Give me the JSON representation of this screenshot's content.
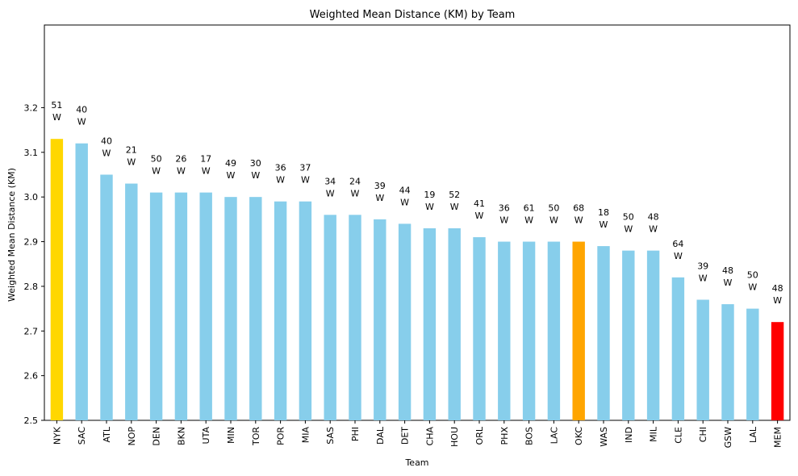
{
  "chart_data": {
    "type": "bar",
    "title": "Weighted Mean Distance (KM) by Team",
    "xlabel": "Team",
    "ylabel": "Weighted Mean Distance (KM)",
    "ylim": [
      2.5,
      3.385
    ],
    "yticks": [
      2.5,
      2.6,
      2.7,
      2.8,
      2.9,
      3.0,
      3.1,
      3.2
    ],
    "ytick_labels": [
      "2.5",
      "2.6",
      "2.7",
      "2.8",
      "2.9",
      "3.0",
      "3.1",
      "3.2"
    ],
    "grid": false,
    "legend": null,
    "categories": [
      "NYK",
      "SAC",
      "ATL",
      "NOP",
      "DEN",
      "BKN",
      "UTA",
      "MIN",
      "TOR",
      "POR",
      "MIA",
      "SAS",
      "PHI",
      "DAL",
      "DET",
      "CHA",
      "HOU",
      "ORL",
      "PHX",
      "BOS",
      "LAC",
      "OKC",
      "WAS",
      "IND",
      "MIL",
      "CLE",
      "CHI",
      "GSW",
      "LAL",
      "MEM"
    ],
    "values": [
      3.13,
      3.12,
      3.05,
      3.03,
      3.01,
      3.01,
      3.01,
      3.0,
      3.0,
      2.99,
      2.99,
      2.96,
      2.96,
      2.95,
      2.94,
      2.93,
      2.93,
      2.91,
      2.9,
      2.9,
      2.9,
      2.9,
      2.89,
      2.88,
      2.88,
      2.82,
      2.77,
      2.76,
      2.75,
      2.72
    ],
    "wins": [
      "51",
      "40",
      "40",
      "21",
      "50",
      "26",
      "17",
      "49",
      "30",
      "36",
      "37",
      "34",
      "24",
      "39",
      "44",
      "19",
      "52",
      "41",
      "36",
      "61",
      "50",
      "68",
      "18",
      "50",
      "48",
      "64",
      "39",
      "48",
      "50",
      "48"
    ],
    "label_suffix": "W",
    "colors": {
      "default": "#87ceeb",
      "highlights": {
        "NYK": "#ffd700",
        "OKC": "#ffa500",
        "MEM": "#ff0000"
      }
    }
  }
}
